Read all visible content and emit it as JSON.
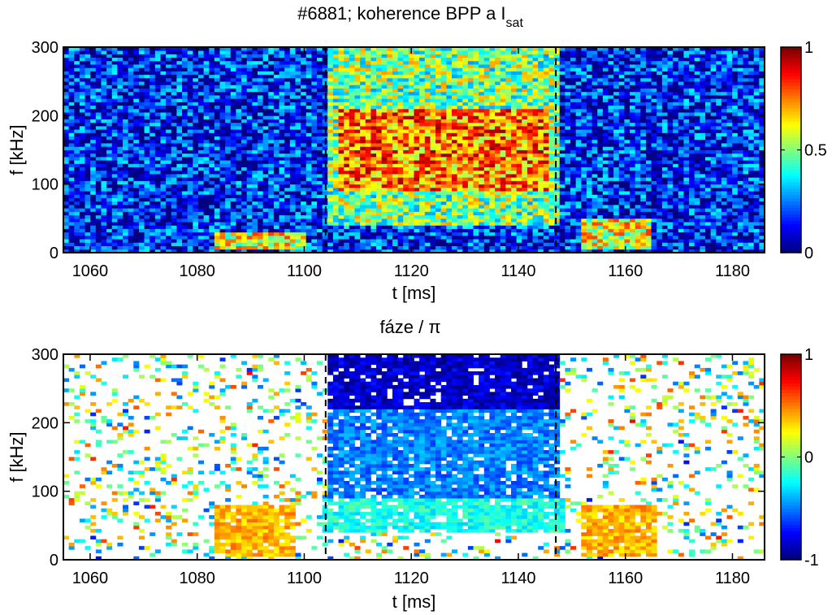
{
  "chart_data": [
    {
      "type": "heatmap",
      "title": "#6881; koherence BPP a I",
      "title_subscript": "sat",
      "xlabel": "t [ms]",
      "ylabel": "f [kHz]",
      "xlim": [
        1055,
        1186
      ],
      "ylim": [
        0,
        300
      ],
      "xticks": [
        1060,
        1080,
        1100,
        1120,
        1140,
        1160,
        1180
      ],
      "yticks": [
        0,
        100,
        200,
        300
      ],
      "colorbar": {
        "min": 0,
        "max": 1,
        "ticks": [
          "0",
          "0.5",
          "1"
        ],
        "tick_values": [
          0,
          0.5,
          1
        ],
        "colormap": "jet"
      },
      "markers": [
        1104,
        1147
      ],
      "background_level": 0.15,
      "regions": [
        {
          "t": [
            1106,
            1146
          ],
          "f": [
            90,
            210
          ],
          "value": 0.75
        },
        {
          "t": [
            1104,
            1148
          ],
          "f": [
            40,
            300
          ],
          "value": 0.5
        },
        {
          "t": [
            1083,
            1100
          ],
          "f": [
            5,
            30
          ],
          "value": 0.6
        },
        {
          "t": [
            1152,
            1165
          ],
          "f": [
            5,
            50
          ],
          "value": 0.6
        },
        {
          "t": [
            1105,
            1146
          ],
          "f": [
            35,
            55
          ],
          "value": 0.2
        }
      ]
    },
    {
      "type": "heatmap",
      "title": "fáze / π",
      "xlabel": "t [ms]",
      "ylabel": "f [kHz]",
      "xlim": [
        1055,
        1186
      ],
      "ylim": [
        0,
        300
      ],
      "xticks": [
        1060,
        1080,
        1100,
        1120,
        1140,
        1160,
        1180
      ],
      "yticks": [
        0,
        100,
        200,
        300
      ],
      "colorbar": {
        "min": -1,
        "max": 1,
        "ticks": [
          "-1",
          "0",
          "1"
        ],
        "tick_values": [
          -1,
          0,
          1
        ],
        "colormap": "jet"
      },
      "markers": [
        1104,
        1147
      ],
      "regions": [
        {
          "t": [
            1104,
            1148
          ],
          "f": [
            220,
            300
          ],
          "value": -0.85
        },
        {
          "t": [
            1104,
            1148
          ],
          "f": [
            90,
            220
          ],
          "value": -0.5
        },
        {
          "t": [
            1103,
            1149
          ],
          "f": [
            40,
            90
          ],
          "value": -0.2
        },
        {
          "t": [
            1083,
            1098
          ],
          "f": [
            5,
            80
          ],
          "value": 0.4
        },
        {
          "t": [
            1152,
            1166
          ],
          "f": [
            5,
            80
          ],
          "value": 0.4
        }
      ]
    }
  ]
}
